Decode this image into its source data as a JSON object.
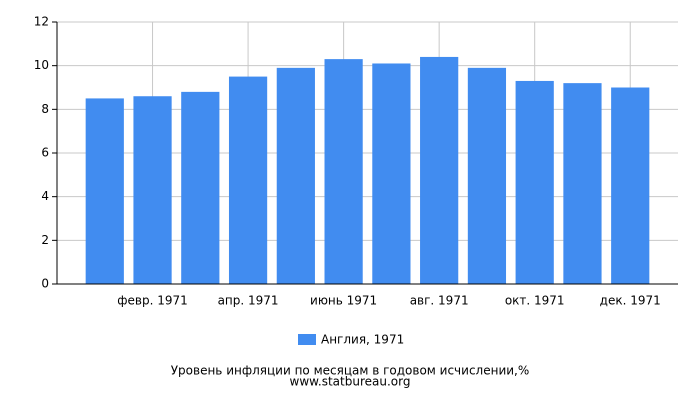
{
  "chart_data": {
    "type": "bar",
    "title": "Уровень инфляции по месяцам в годовом исчислении,%",
    "subtitle": "www.statbureau.org",
    "categories": [
      null,
      "февр. 1971",
      null,
      "апр. 1971",
      null,
      "июнь 1971",
      null,
      "авг. 1971",
      null,
      "окт. 1971",
      null,
      "дек. 1971"
    ],
    "series": [
      {
        "name": "Англия, 1971",
        "color": "#418cf0",
        "values": [
          8.5,
          8.6,
          8.8,
          9.5,
          9.9,
          10.3,
          10.1,
          10.4,
          9.9,
          9.3,
          9.2,
          9.0
        ]
      }
    ],
    "ylim": [
      0,
      12
    ],
    "yticks": [
      0,
      2,
      4,
      6,
      8,
      10,
      12
    ],
    "grid": true
  }
}
